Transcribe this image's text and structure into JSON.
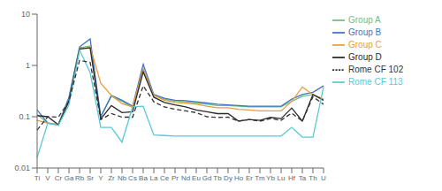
{
  "chart_data": {
    "type": "line",
    "categories": [
      "Ti",
      "V",
      "Cr",
      "Ga",
      "Rb",
      "Sr",
      "Y",
      "Zr",
      "Nb",
      "Cs",
      "Ba",
      "La",
      "Ce",
      "Pr",
      "Nd",
      "Eu",
      "Gd",
      "Tb",
      "Dy",
      "Ho",
      "Er",
      "Tm",
      "Yb",
      "Lu",
      "Hf",
      "Ta",
      "Th",
      "U"
    ],
    "series": [
      {
        "name": "Group A",
        "color": "#6dbf8a",
        "line_style": "solid",
        "values": [
          0.11,
          0.075,
          0.07,
          0.22,
          2.2,
          2.4,
          0.1,
          0.25,
          0.2,
          0.15,
          0.85,
          0.26,
          0.22,
          0.2,
          0.195,
          0.185,
          0.175,
          0.165,
          0.165,
          0.16,
          0.155,
          0.155,
          0.155,
          0.155,
          0.2,
          0.25,
          0.27,
          0.22
        ]
      },
      {
        "name": "Group B",
        "color": "#4472c4",
        "line_style": "solid",
        "values": [
          0.135,
          0.075,
          0.07,
          0.24,
          2.3,
          3.3,
          0.1,
          0.26,
          0.21,
          0.16,
          1.05,
          0.27,
          0.23,
          0.21,
          0.205,
          0.195,
          0.185,
          0.175,
          0.17,
          0.165,
          0.16,
          0.16,
          0.16,
          0.16,
          0.22,
          0.27,
          0.3,
          0.4
        ]
      },
      {
        "name": "Group C",
        "color": "#e8a040",
        "line_style": "solid",
        "values": [
          0.085,
          0.075,
          0.07,
          0.2,
          2.1,
          2.3,
          0.45,
          0.26,
          0.18,
          0.155,
          0.85,
          0.26,
          0.21,
          0.19,
          0.185,
          0.175,
          0.16,
          0.15,
          0.15,
          0.14,
          0.135,
          0.13,
          0.13,
          0.13,
          0.2,
          0.38,
          0.27,
          0.22
        ]
      },
      {
        "name": "Group D",
        "color": "#2a2a2a",
        "line_style": "solid",
        "values": [
          0.105,
          0.1,
          0.07,
          0.2,
          2.1,
          2.2,
          0.09,
          0.165,
          0.12,
          0.125,
          0.75,
          0.24,
          0.19,
          0.17,
          0.155,
          0.135,
          0.125,
          0.115,
          0.115,
          0.082,
          0.088,
          0.085,
          0.097,
          0.092,
          0.148,
          0.082,
          0.27,
          0.21
        ]
      },
      {
        "name": "Rome CF 113",
        "color": "#5bc8d6",
        "line_style": "solid",
        "values": [
          0.016,
          0.075,
          0.068,
          0.17,
          2.0,
          0.72,
          0.062,
          0.062,
          0.032,
          0.155,
          0.16,
          0.044,
          0.043,
          0.042,
          0.042,
          0.042,
          0.042,
          0.042,
          0.042,
          0.042,
          0.042,
          0.042,
          0.042,
          0.042,
          0.062,
          0.04,
          0.04,
          0.38
        ]
      },
      {
        "name": "Rome CF 102",
        "color": "#333333",
        "line_style": "dashed",
        "values": [
          0.055,
          0.1,
          0.098,
          0.2,
          1.25,
          1.15,
          0.088,
          0.115,
          0.098,
          0.098,
          0.4,
          0.195,
          0.155,
          0.14,
          0.13,
          0.12,
          0.1,
          0.097,
          0.098,
          0.082,
          0.088,
          0.082,
          0.092,
          0.085,
          0.118,
          0.082,
          0.245,
          0.175
        ]
      }
    ],
    "log": "y",
    "ylim": [
      0.01,
      10
    ],
    "yticks": [
      0.01,
      0.1,
      1,
      10
    ],
    "grid": false,
    "legend": "upper right"
  }
}
